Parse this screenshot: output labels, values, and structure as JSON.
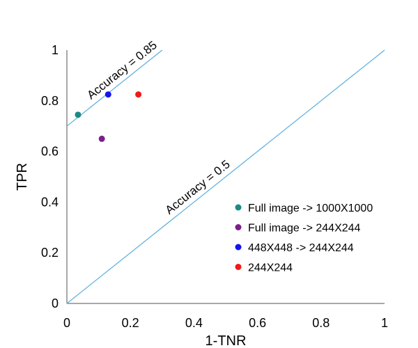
{
  "chart_data": {
    "type": "scatter",
    "xlabel": "1-TNR",
    "ylabel": "TPR",
    "xlim": [
      0,
      1
    ],
    "ylim": [
      0,
      1
    ],
    "x_ticks": [
      "0",
      "0.2",
      "0.4",
      "0.6",
      "0.8",
      "1"
    ],
    "y_ticks": [
      "0",
      "0.2",
      "0.4",
      "0.6",
      "0.8",
      "1"
    ],
    "grid": false,
    "legend_position": "lower-right",
    "series": [
      {
        "name": "Full image -> 1000X1000",
        "color": "#1a8a84",
        "x": [
          0.035
        ],
        "y": [
          0.745
        ]
      },
      {
        "name": "Full image -> 244X244",
        "color": "#7a1f8c",
        "x": [
          0.11
        ],
        "y": [
          0.65
        ]
      },
      {
        "name": "448X448 -> 244X244",
        "color": "#1414f0",
        "x": [
          0.13
        ],
        "y": [
          0.825
        ]
      },
      {
        "name": "244X244",
        "color": "#f01a1a",
        "x": [
          0.225
        ],
        "y": [
          0.825
        ]
      }
    ],
    "reference_lines": [
      {
        "label": "Accuracy = 0.85",
        "x": [
          0,
          0.3
        ],
        "y": [
          0.7,
          1.0
        ],
        "color": "#5aaedc"
      },
      {
        "label": "Accuracy = 0.5",
        "x": [
          0,
          1
        ],
        "y": [
          0,
          1
        ],
        "color": "#5aaedc"
      }
    ]
  }
}
